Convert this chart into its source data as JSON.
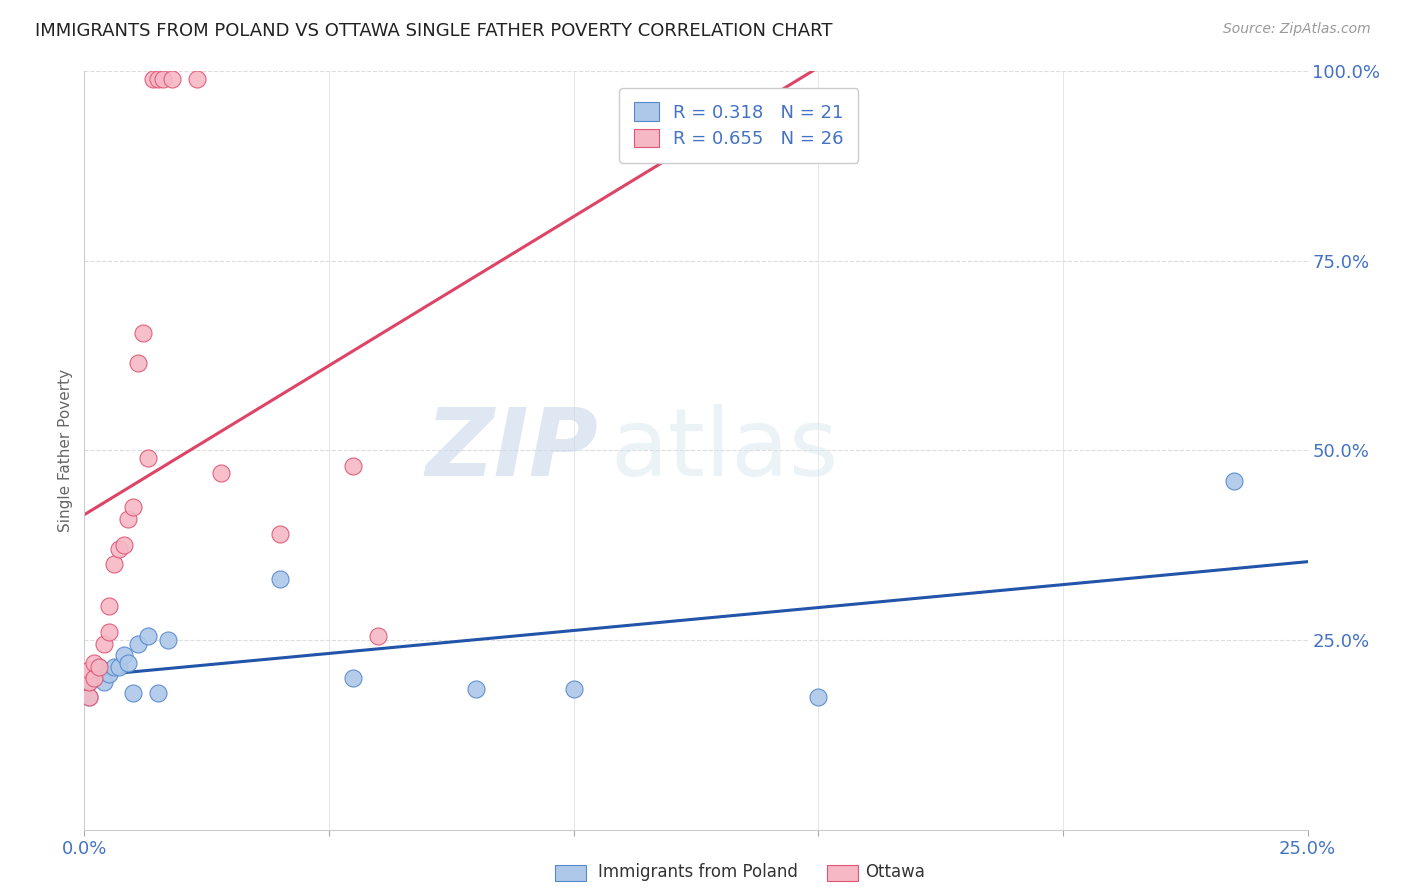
{
  "title": "IMMIGRANTS FROM POLAND VS OTTAWA SINGLE FATHER POVERTY CORRELATION CHART",
  "source": "Source: ZipAtlas.com",
  "ylabel": "Single Father Poverty",
  "xlim": [
    0.0,
    0.25
  ],
  "ylim": [
    0.0,
    1.0
  ],
  "yticks_right": [
    0.25,
    0.5,
    0.75,
    1.0
  ],
  "ytick_labels_right": [
    "25.0%",
    "50.0%",
    "75.0%",
    "100.0%"
  ],
  "legend_r1": "R = 0.318",
  "legend_n1": "N = 21",
  "legend_r2": "R = 0.655",
  "legend_n2": "N = 26",
  "color_blue_fill": "#adc8e8",
  "color_pink_fill": "#f5b8c4",
  "color_blue_edge": "#5588cc",
  "color_pink_edge": "#e05575",
  "color_blue_line": "#2255aa",
  "color_pink_line": "#dd4466",
  "color_blue_text": "#4472c4",
  "watermark_zip": "ZIP",
  "watermark_atlas": "atlas",
  "legend_label1": "Immigrants from Poland",
  "legend_label2": "Ottawa",
  "blue_x": [
    0.001,
    0.001,
    0.002,
    0.003,
    0.004,
    0.005,
    0.006,
    0.007,
    0.008,
    0.009,
    0.01,
    0.011,
    0.013,
    0.015,
    0.017,
    0.04,
    0.055,
    0.08,
    0.1,
    0.15,
    0.235
  ],
  "blue_y": [
    0.175,
    0.195,
    0.2,
    0.215,
    0.195,
    0.205,
    0.215,
    0.215,
    0.23,
    0.22,
    0.18,
    0.245,
    0.255,
    0.18,
    0.25,
    0.33,
    0.2,
    0.185,
    0.185,
    0.175,
    0.46
  ],
  "pink_x": [
    0.001,
    0.001,
    0.001,
    0.002,
    0.002,
    0.003,
    0.004,
    0.005,
    0.005,
    0.006,
    0.007,
    0.008,
    0.009,
    0.01,
    0.011,
    0.012,
    0.013,
    0.014,
    0.015,
    0.016,
    0.018,
    0.023,
    0.028,
    0.04,
    0.055,
    0.06
  ],
  "pink_y": [
    0.175,
    0.195,
    0.21,
    0.2,
    0.22,
    0.215,
    0.245,
    0.26,
    0.295,
    0.35,
    0.37,
    0.375,
    0.41,
    0.425,
    0.615,
    0.655,
    0.49,
    0.99,
    0.99,
    0.99,
    0.99,
    0.99,
    0.47,
    0.39,
    0.48,
    0.255
  ]
}
